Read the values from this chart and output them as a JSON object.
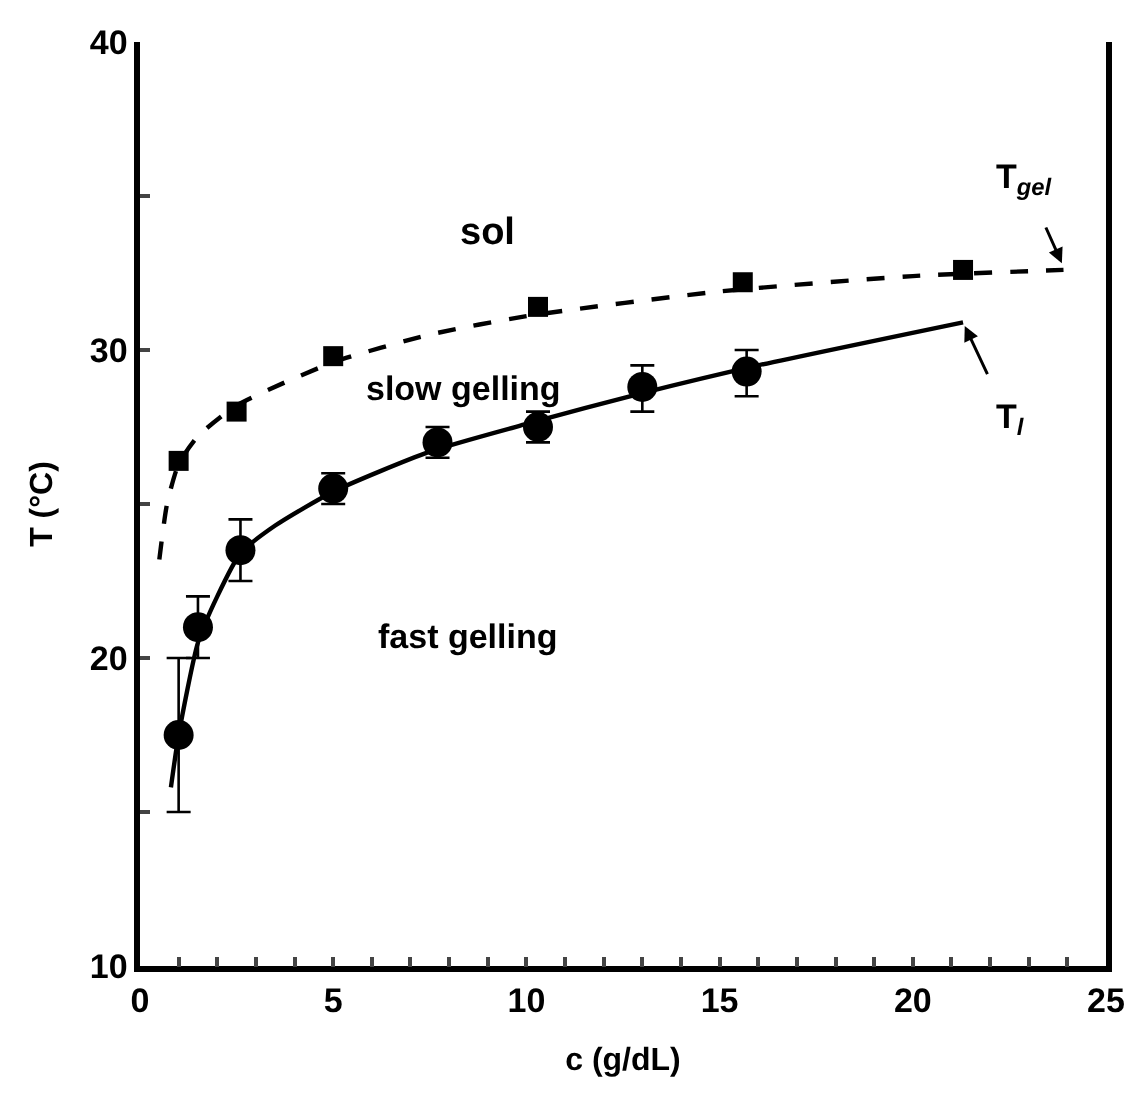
{
  "chart_data": {
    "type": "scatter",
    "xlabel": "c (g/dL)",
    "ylabel": "T (°C)",
    "xlim": [
      0,
      25
    ],
    "ylim": [
      10,
      40
    ],
    "xticks": [
      0,
      {
        "value": 1,
        "label": null
      },
      {
        "value": 2,
        "label": null
      },
      {
        "value": 3,
        "label": null
      },
      {
        "value": 4,
        "label": null
      },
      5,
      {
        "value": 6,
        "label": null
      },
      {
        "value": 7,
        "label": null
      },
      {
        "value": 8,
        "label": null
      },
      {
        "value": 9,
        "label": null
      },
      10,
      {
        "value": 11,
        "label": null
      },
      {
        "value": 12,
        "label": null
      },
      {
        "value": 13,
        "label": null
      },
      {
        "value": 14,
        "label": null
      },
      15,
      {
        "value": 16,
        "label": null
      },
      {
        "value": 17,
        "label": null
      },
      {
        "value": 18,
        "label": null
      },
      {
        "value": 19,
        "label": null
      },
      20,
      {
        "value": 21,
        "label": null
      },
      {
        "value": 22,
        "label": null
      },
      {
        "value": 23,
        "label": null
      },
      {
        "value": 24,
        "label": null
      },
      25
    ],
    "yticks": [
      10,
      {
        "value": 15,
        "label": null
      },
      20,
      {
        "value": 25,
        "label": null
      },
      30,
      {
        "value": 35,
        "label": null
      },
      40
    ],
    "series": [
      {
        "type": "line",
        "color": "#000000",
        "line_style": "dashed",
        "marker": "none",
        "x": [
          0.5,
          0.7,
          1,
          1.5,
          2.5,
          5,
          7.5,
          10,
          15,
          20,
          23.9
        ],
        "values": [
          23.2,
          25,
          26.3,
          27.2,
          28.2,
          29.6,
          30.5,
          31.1,
          31.9,
          32.4,
          32.6
        ]
      },
      {
        "type": "line",
        "color": "#000000",
        "line_style": "solid",
        "marker": "none",
        "x": [
          0.8,
          1,
          1.5,
          2,
          2.6,
          3.5,
          5,
          7.5,
          10,
          13,
          16,
          21.3
        ],
        "values": [
          15.8,
          17.5,
          20.5,
          22,
          23.4,
          24.3,
          25.4,
          26.7,
          27.6,
          28.6,
          29.5,
          30.9
        ]
      },
      {
        "color": "#000000",
        "marker": "square",
        "x": [
          1.0,
          2.5,
          5.0,
          10.3,
          15.6,
          21.3
        ],
        "values": [
          26.4,
          28.0,
          29.8,
          31.4,
          32.2,
          32.6
        ]
      },
      {
        "color": "#000000",
        "marker": "circle",
        "x": [
          1.0,
          1.5,
          2.6,
          5.0,
          7.7,
          10.3,
          13.0,
          15.7
        ],
        "values": [
          17.5,
          21.0,
          23.5,
          25.5,
          27.0,
          27.5,
          28.8,
          29.3
        ],
        "errors": [
          [
            15,
            20
          ],
          [
            20,
            22
          ],
          [
            22.5,
            24.5
          ],
          [
            25,
            26
          ],
          [
            26.5,
            27.5
          ],
          [
            27,
            28
          ],
          [
            28,
            29.5
          ],
          [
            28.5,
            30
          ]
        ]
      }
    ],
    "annotations": [
      "sol",
      "slow gelling",
      "fast gelling",
      {
        "text": "T$_{gel}$",
        "x": 23.9,
        "y": 32.7
      },
      {
        "text": "T$_{l}$",
        "x": 21.3,
        "y": 30.9
      }
    ]
  }
}
